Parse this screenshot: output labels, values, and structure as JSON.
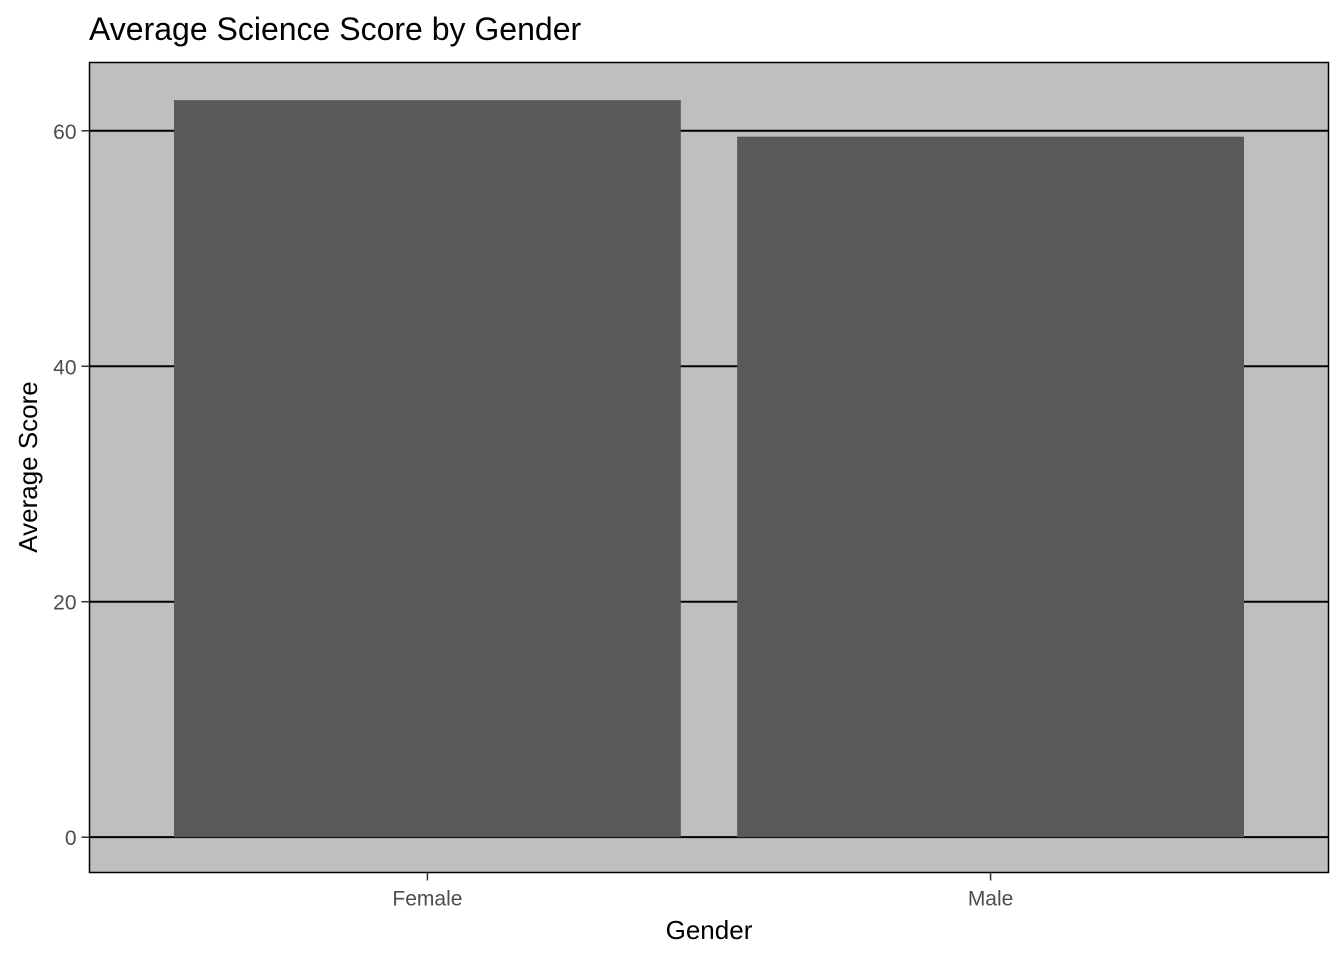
{
  "chart_data": {
    "type": "bar",
    "title": "Average Science Score by Gender",
    "xlabel": "Gender",
    "ylabel": "Average Score",
    "categories": [
      "Female",
      "Male"
    ],
    "values": [
      62.6,
      59.5
    ],
    "ylim": [
      -3,
      65.8
    ],
    "yticks": [
      0,
      20,
      40,
      60
    ],
    "grid": true,
    "legend": "none",
    "colors": {
      "bar": "#595959",
      "panel": "#bfbfbf",
      "grid": "#000000",
      "border": "#000000"
    }
  }
}
